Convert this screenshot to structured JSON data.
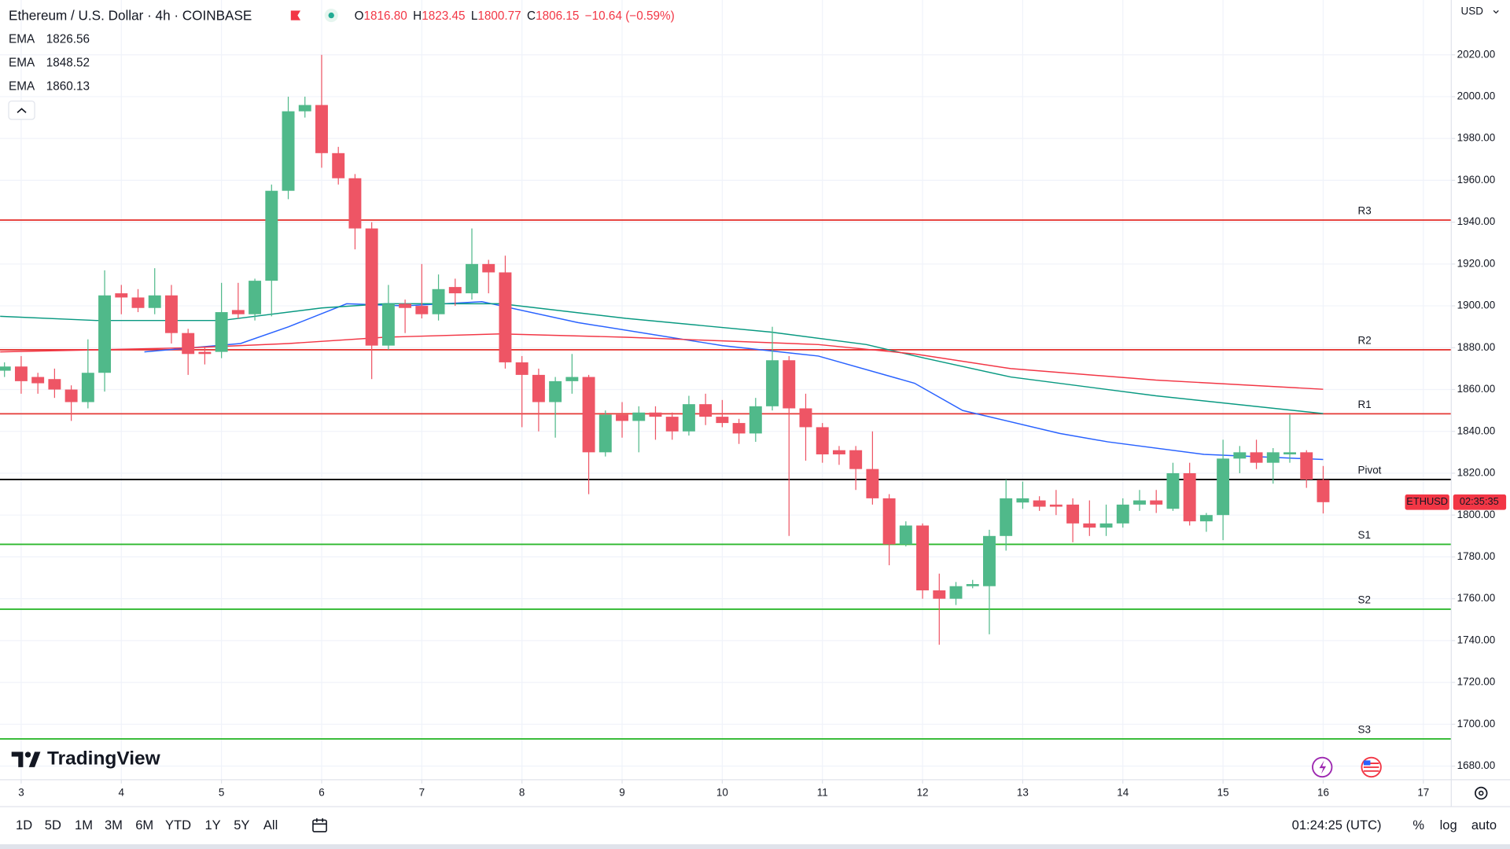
{
  "header": {
    "symbol": "Ethereum / U.S. Dollar · 4h · COINBASE",
    "ohlc": [
      {
        "key": "O",
        "value": "1816.80"
      },
      {
        "key": "H",
        "value": "1823.45"
      },
      {
        "key": "L",
        "value": "1800.77"
      },
      {
        "key": "C",
        "value": "1806.15"
      }
    ],
    "change": "−10.64 (−0.59%)",
    "currency": "USD",
    "brand": "TradingView"
  },
  "toolbar": {
    "ranges": [
      "1D",
      "5D",
      "1M",
      "3M",
      "6M",
      "YTD",
      "1Y",
      "5Y",
      "All"
    ],
    "clock": "01:24:25 (UTC)",
    "options": [
      "%",
      "log",
      "auto"
    ]
  },
  "chart_data": {
    "type": "candlestick",
    "up_color": "#50b98a",
    "down_color": "#ee5565",
    "x": [
      2.8333,
      3,
      3.1667,
      3.3333,
      3.5,
      3.6667,
      3.8333,
      4,
      4.1667,
      4.3333,
      4.5,
      4.6667,
      4.8333,
      5,
      5.1667,
      5.3333,
      5.5,
      5.6667,
      5.8333,
      6,
      6.1667,
      6.3333,
      6.5,
      6.6667,
      6.8333,
      7,
      7.1667,
      7.3333,
      7.5,
      7.6667,
      7.8333,
      8,
      8.1667,
      8.3333,
      8.5,
      8.6667,
      8.8333,
      9,
      9.1667,
      9.3333,
      9.5,
      9.6667,
      9.8333,
      10,
      10.1667,
      10.3333,
      10.5,
      10.6667,
      10.8333,
      11,
      11.1667,
      11.3333,
      11.5,
      11.6667,
      11.8333,
      12,
      12.1667,
      12.3333,
      12.5,
      12.6667,
      12.8333,
      13,
      13.1667,
      13.3333,
      13.5,
      13.6667,
      13.8333,
      14,
      14.1667,
      14.3333,
      14.5,
      14.6667,
      14.8333,
      15,
      15.1667,
      15.3333,
      15.5,
      15.6667,
      15.8333,
      16
    ],
    "open": [
      1869,
      1871,
      1866,
      1865,
      1860,
      1854,
      1868,
      1906,
      1904,
      1899,
      1905,
      1887,
      1878,
      1878,
      1898,
      1896,
      1912,
      1955,
      1993,
      1996,
      1973,
      1961,
      1937,
      1881,
      1901,
      1900,
      1896,
      1909,
      1906,
      1920,
      1916,
      1873,
      1867,
      1854,
      1864,
      1866,
      1830,
      1848,
      1845,
      1849,
      1847,
      1840,
      1853,
      1847,
      1844,
      1839,
      1852,
      1874,
      1851,
      1842,
      1831,
      1831,
      1822,
      1808,
      1786,
      1795,
      1764,
      1760,
      1766,
      1766,
      1790,
      1806,
      1807,
      1805,
      1805,
      1796,
      1794,
      1796,
      1805,
      1807,
      1803,
      1820,
      1797,
      1800,
      1827,
      1830,
      1825,
      1829,
      1830,
      1816.8
    ],
    "high": [
      1873,
      1876,
      1868,
      1870,
      1862,
      1884,
      1917,
      1910,
      1908,
      1918,
      1910,
      1889,
      1880,
      1911,
      1911,
      1913,
      1958,
      2000,
      2000,
      2020,
      1976,
      1963,
      1940,
      1910,
      1903,
      1920,
      1915,
      1913,
      1937,
      1922,
      1924,
      1876,
      1870,
      1866,
      1877,
      1867,
      1850,
      1854,
      1852,
      1852,
      1849,
      1857,
      1858,
      1855,
      1846,
      1856,
      1890,
      1876,
      1858,
      1844,
      1833,
      1833,
      1840,
      1810,
      1797,
      1796,
      1772,
      1768,
      1769,
      1793,
      1817,
      1816,
      1809,
      1812,
      1808,
      1807,
      1805,
      1808,
      1812,
      1812,
      1825,
      1825,
      1801,
      1836,
      1833,
      1836,
      1832,
      1848,
      1831,
      1823.45
    ],
    "low": [
      1866,
      1858,
      1858,
      1856,
      1845,
      1851,
      1859,
      1896,
      1897,
      1896,
      1882,
      1867,
      1872,
      1875,
      1894,
      1893,
      1895,
      1951,
      1990,
      1966,
      1958,
      1927,
      1865,
      1879,
      1887,
      1894,
      1893,
      1900,
      1903,
      1906,
      1870,
      1842,
      1840,
      1837,
      1858,
      1810,
      1828,
      1837,
      1830,
      1836,
      1836,
      1838,
      1843,
      1842,
      1834,
      1835,
      1850,
      1790,
      1826,
      1825,
      1824,
      1812,
      1805,
      1776,
      1785,
      1760,
      1738,
      1757,
      1765,
      1743,
      1783,
      1803,
      1802,
      1800,
      1787,
      1790,
      1790,
      1794,
      1802,
      1801,
      1802,
      1795,
      1792,
      1788,
      1820,
      1822,
      1815,
      1825,
      1813,
      1800.77
    ],
    "close": [
      1871,
      1864,
      1863,
      1860,
      1854,
      1868,
      1905,
      1904,
      1899,
      1905,
      1887,
      1877,
      1877,
      1897,
      1896,
      1912,
      1955,
      1993,
      1996,
      1973,
      1961,
      1937,
      1881,
      1901,
      1899,
      1896,
      1908,
      1906,
      1920,
      1916,
      1873,
      1867,
      1854,
      1864,
      1866,
      1830,
      1848,
      1845,
      1849,
      1847,
      1840,
      1853,
      1847,
      1844,
      1839,
      1852,
      1874,
      1851,
      1842,
      1829,
      1829,
      1822,
      1808,
      1786,
      1795,
      1764,
      1760,
      1766,
      1767,
      1790,
      1808,
      1808,
      1804,
      1804,
      1796,
      1794,
      1796,
      1805,
      1807,
      1805,
      1820,
      1797,
      1800,
      1827,
      1830,
      1825,
      1830,
      1830,
      1817,
      1806.15
    ],
    "lines": [
      {
        "name": "EMA",
        "label": "1826.56",
        "color": "#2962ff",
        "x": [
          4.23,
          5.19,
          5.67,
          6.25,
          6.83,
          7.6,
          8.56,
          10.0,
          10.96,
          11.92,
          12.4,
          13.37,
          13.85,
          14.81,
          16.0
        ],
        "values": [
          1878,
          1882,
          1890,
          1901,
          1900,
          1902,
          1892,
          1881,
          1876,
          1863,
          1850,
          1839,
          1835,
          1829,
          1826.56
        ]
      },
      {
        "name": "EMA",
        "label": "1848.52",
        "color": "#089981",
        "x": [
          2.79,
          3.75,
          5.0,
          6.0,
          6.63,
          7.79,
          9.04,
          10.48,
          11.44,
          12.02,
          12.88,
          14.33,
          16.0
        ],
        "values": [
          1895,
          1893,
          1893,
          1899,
          1901,
          1901,
          1894,
          1887.5,
          1881.5,
          1875,
          1866,
          1857,
          1848.52
        ]
      },
      {
        "name": "EMA",
        "label": "1860.13",
        "color": "#f23645",
        "x": [
          2.79,
          4.71,
          5.67,
          6.63,
          7.79,
          9.04,
          10.96,
          11.92,
          12.88,
          14.33,
          16.0
        ],
        "values": [
          1878,
          1880,
          1882,
          1885,
          1886.6,
          1885,
          1881.5,
          1877,
          1870,
          1864.5,
          1860.13
        ]
      }
    ],
    "levels": [
      {
        "name": "R3",
        "value": 1941,
        "color": "#e53935"
      },
      {
        "name": "R2",
        "value": 1879,
        "color": "#e53935"
      },
      {
        "name": "R1",
        "value": 1848.4,
        "color": "#e53935"
      },
      {
        "name": "Pivot",
        "value": 1817,
        "color": "#000000"
      },
      {
        "name": "S1",
        "value": 1786,
        "color": "#2eb82e"
      },
      {
        "name": "S2",
        "value": 1755,
        "color": "#2eb82e"
      },
      {
        "name": "S3",
        "value": 1693,
        "color": "#2eb82e"
      }
    ],
    "price_tag": {
      "symbol": "ETHUSD",
      "countdown": "02:35:35",
      "color": "#f23645"
    },
    "xlim": [
      2.7885,
      17.2788
    ],
    "xticks": [
      3,
      4,
      5,
      6,
      7,
      8,
      9,
      10,
      11,
      12,
      13,
      14,
      15,
      16,
      17
    ],
    "ylim": [
      1673.5,
      2046.2
    ],
    "yticks": [
      {
        "value": 1680,
        "label": "1680.00"
      },
      {
        "value": 1700,
        "label": "1700.00"
      },
      {
        "value": 1720,
        "label": "1720.00"
      },
      {
        "value": 1740,
        "label": "1740.00"
      },
      {
        "value": 1760,
        "label": "1760.00"
      },
      {
        "value": 1780,
        "label": "1780.00"
      },
      {
        "value": 1800,
        "label": "1800.00"
      },
      {
        "value": 1820,
        "label": "1820.00"
      },
      {
        "value": 1840,
        "label": "1840.00"
      },
      {
        "value": 1860,
        "label": "1860.00"
      },
      {
        "value": 1880,
        "label": "1880.00"
      },
      {
        "value": 1900,
        "label": "1900.00"
      },
      {
        "value": 1920,
        "label": "1920.00"
      },
      {
        "value": 1940,
        "label": "1940.00"
      },
      {
        "value": 1960,
        "label": "1960.00"
      },
      {
        "value": 1980,
        "label": "1980.00"
      },
      {
        "value": 2000,
        "label": "2000.00"
      },
      {
        "value": 2020,
        "label": "2020.00"
      }
    ],
    "grid": true
  }
}
